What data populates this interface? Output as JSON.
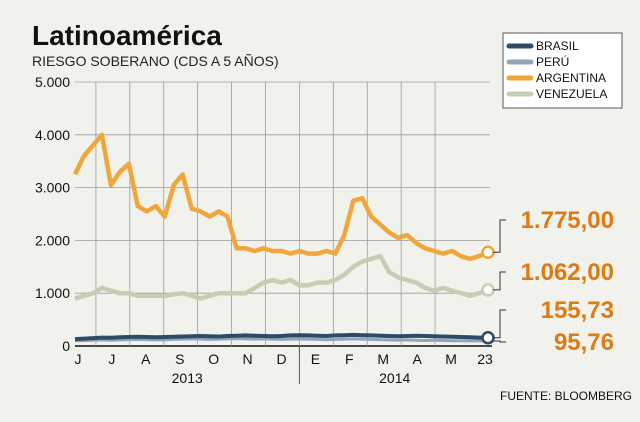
{
  "header": {
    "title": "Latinoamérica",
    "subtitle": "RIESGO SOBERANO (CDS A 5 AÑOS)"
  },
  "source": "FUENTE: BLOOMBERG",
  "colors": {
    "brasil": "#2f4a66",
    "peru": "#8fa6b8",
    "argentina": "#f0a63a",
    "venezuela": "#c9cbb3",
    "highlight": "#e07a10"
  },
  "chart_data": {
    "type": "line",
    "ylim": [
      0,
      5000
    ],
    "yticks": [
      "0",
      "1.000",
      "2.000",
      "3.000",
      "4.000",
      "5.000"
    ],
    "ytick_values": [
      0,
      1000,
      2000,
      3000,
      4000,
      5000
    ],
    "x_labels": [
      "J",
      "J",
      "A",
      "S",
      "O",
      "N",
      "D",
      "E",
      "F",
      "M",
      "A",
      "M",
      "23"
    ],
    "years": [
      "2013",
      "2014"
    ],
    "legend_position": "top-right",
    "grid": "vertical",
    "series": [
      {
        "name": "BRASIL",
        "values": [
          130,
          140,
          150,
          160,
          155,
          165,
          170,
          175,
          170,
          165,
          170,
          175,
          180,
          185,
          190,
          185,
          180,
          190,
          195,
          200,
          195,
          190,
          185,
          190,
          200,
          205,
          200,
          195,
          190,
          200,
          205,
          210,
          205,
          200,
          195,
          190,
          185,
          190,
          195,
          190,
          185,
          180,
          175,
          170,
          165,
          160,
          155.73
        ]
      },
      {
        "name": "PERÚ",
        "values": [
          100,
          105,
          110,
          115,
          110,
          115,
          120,
          125,
          120,
          115,
          120,
          125,
          130,
          135,
          130,
          125,
          130,
          135,
          140,
          135,
          130,
          135,
          130,
          125,
          130,
          135,
          130,
          125,
          120,
          125,
          130,
          135,
          130,
          125,
          120,
          115,
          110,
          115,
          110,
          105,
          110,
          105,
          100,
          98,
          97,
          96,
          95.76
        ]
      },
      {
        "name": "ARGENTINA",
        "values": [
          3250,
          3600,
          3800,
          4000,
          3050,
          3300,
          3450,
          2650,
          2550,
          2650,
          2450,
          3050,
          3250,
          2600,
          2550,
          2450,
          2550,
          2450,
          1850,
          1850,
          1800,
          1850,
          1800,
          1800,
          1750,
          1800,
          1750,
          1750,
          1800,
          1750,
          2100,
          2750,
          2800,
          2450,
          2300,
          2150,
          2050,
          2100,
          1950,
          1850,
          1800,
          1750,
          1800,
          1700,
          1650,
          1700,
          1775
        ]
      },
      {
        "name": "VENEZUELA",
        "values": [
          900,
          950,
          1000,
          1100,
          1050,
          1000,
          1000,
          950,
          950,
          950,
          950,
          980,
          1000,
          950,
          900,
          950,
          1000,
          1000,
          1000,
          1000,
          1100,
          1200,
          1250,
          1200,
          1250,
          1150,
          1150,
          1200,
          1200,
          1250,
          1350,
          1500,
          1600,
          1650,
          1700,
          1400,
          1300,
          1250,
          1200,
          1100,
          1050,
          1100,
          1050,
          1000,
          950,
          1000,
          1062
        ]
      }
    ],
    "end_labels": [
      "1.775,00",
      "1.062,00",
      "155,73",
      "95,76"
    ]
  }
}
